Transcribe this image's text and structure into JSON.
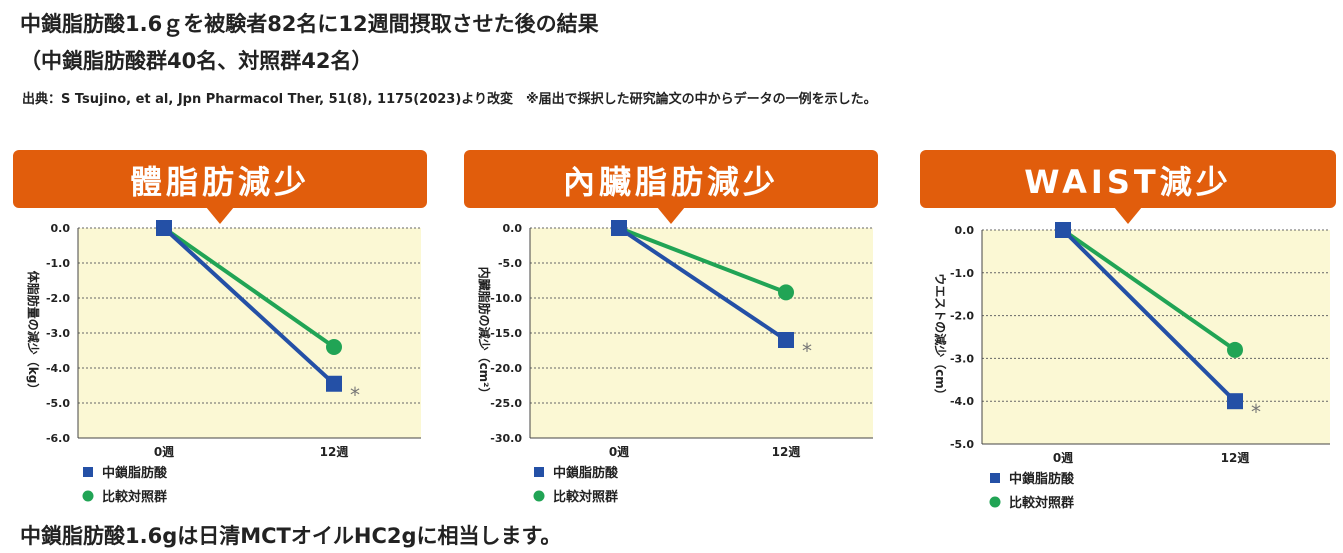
{
  "header": {
    "title_line1": "中鎖脂肪酸1.6ｇを被験者82名に12週間摂取させた後の結果",
    "title_line2": "（中鎖脂肪酸群40名、対照群42名）",
    "source": "出典：S Tsujino, et al, Jpn Pharmacol Ther, 51(8), 1175(2023)より改変　※届出で採択した研究論文の中からデータの一例を示した。"
  },
  "footer": {
    "note": "中鎖脂肪酸1.6gは日清MCTオイルHC2gに相当します。"
  },
  "colors": {
    "banner": "#e15d0c",
    "plot_bg": "#fbf8d4",
    "mct": "#2450a6",
    "control": "#21a455",
    "marker_text": "#777777"
  },
  "chart_data": [
    {
      "type": "line",
      "title": "體脂肪減少",
      "ylabel": "体脂肪量の減少（kg）",
      "categories": [
        "0週",
        "12週"
      ],
      "ylim": [
        -6.0,
        0.0
      ],
      "yticks": [
        "0.0",
        "-1.0",
        "-2.0",
        "-3.0",
        "-4.0",
        "-5.0",
        "-6.0"
      ],
      "ytick_values": [
        0,
        -1,
        -2,
        -3,
        -4,
        -5,
        -6
      ],
      "grid": true,
      "legend_position": "bottom-left",
      "significance_mark": "*",
      "series": [
        {
          "name": "中鎖脂肪酸",
          "marker": "square",
          "values": [
            0.0,
            -4.45
          ]
        },
        {
          "name": "比較対照群",
          "marker": "circle",
          "values": [
            0.0,
            -3.4
          ]
        }
      ]
    },
    {
      "type": "line",
      "title": "內臟脂肪減少",
      "ylabel": "内臓脂肪の減少（cm²）",
      "categories": [
        "0週",
        "12週"
      ],
      "ylim": [
        -30.0,
        0.0
      ],
      "yticks": [
        "0.0",
        "-5.0",
        "-10.0",
        "-15.0",
        "-20.0",
        "-25.0",
        "-30.0"
      ],
      "ytick_values": [
        0,
        -5,
        -10,
        -15,
        -20,
        -25,
        -30
      ],
      "grid": true,
      "legend_position": "bottom-left",
      "significance_mark": "*",
      "series": [
        {
          "name": "中鎖脂肪酸",
          "marker": "square",
          "values": [
            0.0,
            -16.0
          ]
        },
        {
          "name": "比較対照群",
          "marker": "circle",
          "values": [
            0.0,
            -9.2
          ]
        }
      ]
    },
    {
      "type": "line",
      "title": "WAIST減少",
      "ylabel": "ウエストの減少（cm）",
      "categories": [
        "0週",
        "12週"
      ],
      "ylim": [
        -5.0,
        0.0
      ],
      "yticks": [
        "0.0",
        "-1.0",
        "-2.0",
        "-3.0",
        "-4.0",
        "-5.0"
      ],
      "ytick_values": [
        0,
        -1,
        -2,
        -3,
        -4,
        -5
      ],
      "grid": true,
      "legend_position": "bottom-left",
      "significance_mark": "*",
      "series": [
        {
          "name": "中鎖脂肪酸",
          "marker": "square",
          "values": [
            0.0,
            -4.0
          ]
        },
        {
          "name": "比較対照群",
          "marker": "circle",
          "values": [
            0.0,
            -2.8
          ]
        }
      ]
    }
  ]
}
